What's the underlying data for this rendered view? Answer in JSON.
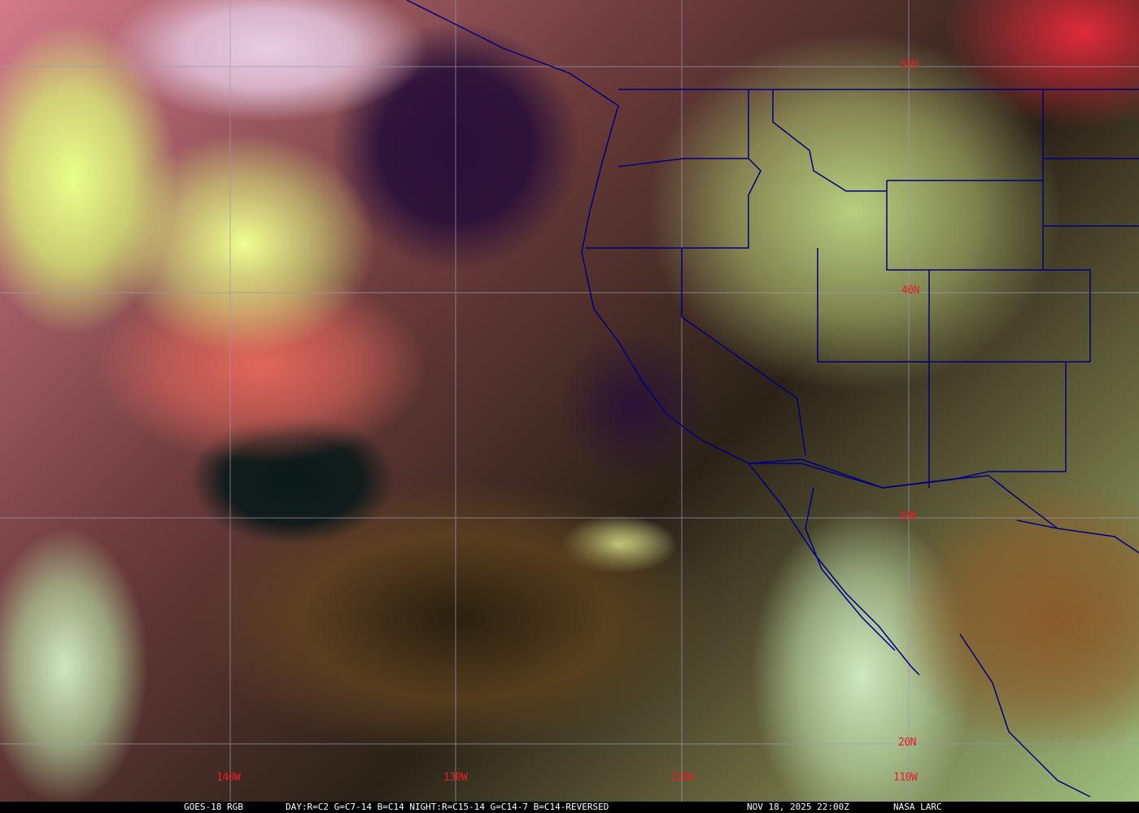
{
  "map": {
    "satellite": "GOES-18",
    "colors": {
      "gridlines": "#9a9ab0",
      "borders": "#000080",
      "labels": "#e0202a",
      "caption_bg": "#000000",
      "caption_text": "#ffffff"
    },
    "longitude_labels": [
      "140W",
      "130W",
      "120W",
      "110W"
    ],
    "latitude_labels": [
      "50N",
      "40N",
      "30N",
      "20N"
    ]
  },
  "caption": {
    "product": "GOES-18 RGB",
    "recipe": "DAY:R=C2 G=C7-14 B=C14 NIGHT:R=C15-14 G=C14-7 B=C14-REVERSED",
    "timestamp": "NOV 18, 2025 22:00Z",
    "source": "NASA LARC"
  }
}
